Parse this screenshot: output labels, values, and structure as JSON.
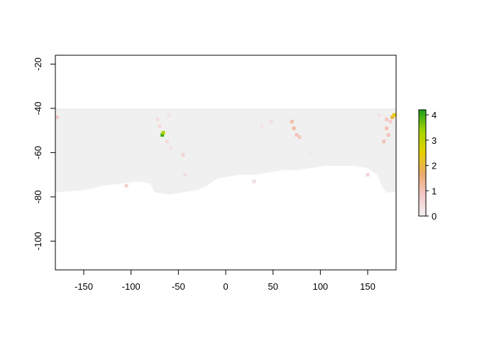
{
  "chart_data": {
    "type": "heatmap",
    "title": "",
    "xlabel": "",
    "ylabel": "",
    "xlim": [
      -180,
      180
    ],
    "ylim": [
      -113,
      -16
    ],
    "x_ticks": [
      -150,
      -100,
      -50,
      0,
      50,
      100,
      150
    ],
    "y_ticks": [
      -20,
      -40,
      -60,
      -80,
      -100
    ],
    "x_tick_labels": [
      "-150",
      "-100",
      "-50",
      "0",
      "50",
      "100",
      "150"
    ],
    "y_tick_labels": [
      "-20",
      "-40",
      "-60",
      "-80",
      "-100"
    ],
    "data_extent": {
      "lon": [
        -180,
        180
      ],
      "lat": [
        -78,
        -40
      ]
    },
    "background_value": 0,
    "legend": {
      "position": "right",
      "range": [
        0,
        4.2
      ],
      "ticks": [
        0,
        1,
        2,
        3,
        4
      ],
      "tick_labels": [
        "0",
        "1",
        "2",
        "3",
        "4"
      ],
      "colors": [
        "#f2f2f2",
        "#f5c9c9",
        "#eba96a",
        "#e6d000",
        "#a6d400",
        "#1aa01a"
      ]
    },
    "colors": {
      "no_data": "#ffffff",
      "zero": "#f0f0f0"
    },
    "hotspots": [
      {
        "lon": -67,
        "lat": -52,
        "value": 4.0
      },
      {
        "lon": -66,
        "lat": -51,
        "value": 3.2
      },
      {
        "lon": -70,
        "lat": -48,
        "value": 0.5
      },
      {
        "lon": -72,
        "lat": -45,
        "value": 0.4
      },
      {
        "lon": -60,
        "lat": -43,
        "value": 0.3
      },
      {
        "lon": -62,
        "lat": -55,
        "value": 0.5
      },
      {
        "lon": -58,
        "lat": -58,
        "value": 0.3
      },
      {
        "lon": -45,
        "lat": -61,
        "value": 0.6
      },
      {
        "lon": -43,
        "lat": -70,
        "value": 0.4
      },
      {
        "lon": -178,
        "lat": -44,
        "value": 0.8
      },
      {
        "lon": -105,
        "lat": -75,
        "value": 0.7
      },
      {
        "lon": 70,
        "lat": -46,
        "value": 1.1
      },
      {
        "lon": 72,
        "lat": -49,
        "value": 1.2
      },
      {
        "lon": 75,
        "lat": -52,
        "value": 1.0
      },
      {
        "lon": 78,
        "lat": -53,
        "value": 0.9
      },
      {
        "lon": 48,
        "lat": -46,
        "value": 0.4
      },
      {
        "lon": 38,
        "lat": -48,
        "value": 0.3
      },
      {
        "lon": 90,
        "lat": -60,
        "value": 0.2
      },
      {
        "lon": 30,
        "lat": -73,
        "value": 0.4
      },
      {
        "lon": 150,
        "lat": -70,
        "value": 0.6
      },
      {
        "lon": 162,
        "lat": -43,
        "value": 0.3
      },
      {
        "lon": 170,
        "lat": -45,
        "value": 0.9
      },
      {
        "lon": 170,
        "lat": -49,
        "value": 1.1
      },
      {
        "lon": 172,
        "lat": -52,
        "value": 1.0
      },
      {
        "lon": 167,
        "lat": -55,
        "value": 1.0
      },
      {
        "lon": 174,
        "lat": -46,
        "value": 0.8
      },
      {
        "lon": 176,
        "lat": -44,
        "value": 2.0
      },
      {
        "lon": 178,
        "lat": -43,
        "value": 2.4
      }
    ]
  }
}
